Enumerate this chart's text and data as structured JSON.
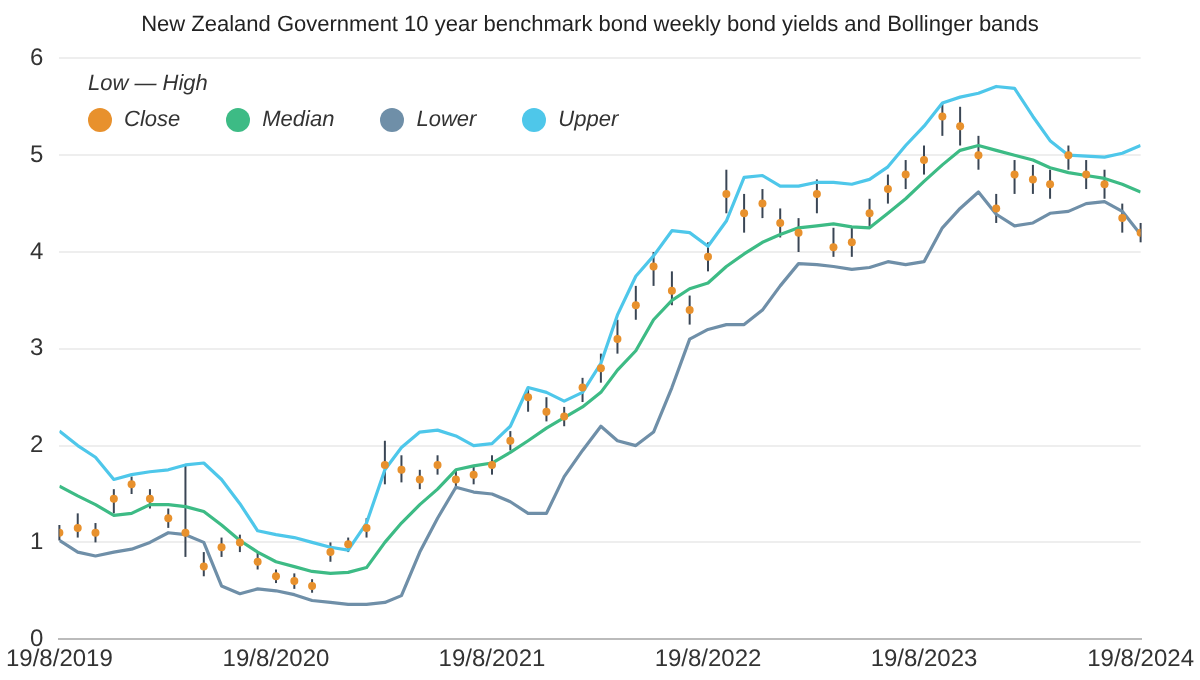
{
  "chart_data": {
    "type": "line",
    "title": "New Zealand Government 10 year benchmark bond weekly bond yields and Bollinger bands",
    "legend_title": "Low — High",
    "x": [
      "2019-08-19",
      "2019-09-19",
      "2019-10-19",
      "2019-11-19",
      "2019-12-19",
      "2020-01-19",
      "2020-02-19",
      "2020-03-19",
      "2020-04-19",
      "2020-05-19",
      "2020-06-19",
      "2020-07-19",
      "2020-08-19",
      "2020-09-19",
      "2020-10-19",
      "2020-11-19",
      "2020-12-19",
      "2021-01-19",
      "2021-02-19",
      "2021-03-19",
      "2021-04-19",
      "2021-05-19",
      "2021-06-19",
      "2021-07-19",
      "2021-08-19",
      "2021-09-19",
      "2021-10-19",
      "2021-11-19",
      "2021-12-19",
      "2022-01-19",
      "2022-02-19",
      "2022-03-19",
      "2022-04-19",
      "2022-05-19",
      "2022-06-19",
      "2022-07-19",
      "2022-08-19",
      "2022-09-19",
      "2022-10-19",
      "2022-11-19",
      "2022-12-19",
      "2023-01-19",
      "2023-02-19",
      "2023-03-19",
      "2023-04-19",
      "2023-05-19",
      "2023-06-19",
      "2023-07-19",
      "2023-08-19",
      "2023-09-19",
      "2023-10-19",
      "2023-11-19",
      "2023-12-19",
      "2024-01-19",
      "2024-02-19",
      "2024-03-19",
      "2024-04-19",
      "2024-05-19",
      "2024-06-19",
      "2024-07-19",
      "2024-08-19"
    ],
    "series": [
      {
        "name": "Close",
        "type": "scatter",
        "marker": "circle",
        "color": "#e8912d",
        "values": [
          1.1,
          1.15,
          1.1,
          1.45,
          1.6,
          1.45,
          1.25,
          1.1,
          0.75,
          0.95,
          1.0,
          0.8,
          0.65,
          0.6,
          0.55,
          0.9,
          0.98,
          1.15,
          1.8,
          1.75,
          1.65,
          1.8,
          1.65,
          1.7,
          1.8,
          2.05,
          2.5,
          2.35,
          2.3,
          2.6,
          2.8,
          3.1,
          3.45,
          3.85,
          3.6,
          3.4,
          3.95,
          4.6,
          4.4,
          4.5,
          4.3,
          4.2,
          4.6,
          4.05,
          4.1,
          4.4,
          4.65,
          4.8,
          4.95,
          5.4,
          5.3,
          5.0,
          4.45,
          4.8,
          4.75,
          4.7,
          5.0,
          4.8,
          4.7,
          4.35,
          4.2
        ],
        "errors": [
          [
            1.02,
            1.18
          ],
          [
            1.05,
            1.3
          ],
          [
            1.0,
            1.2
          ],
          [
            1.3,
            1.55
          ],
          [
            1.5,
            1.68
          ],
          [
            1.35,
            1.55
          ],
          [
            1.15,
            1.35
          ],
          [
            0.85,
            1.8
          ],
          [
            0.65,
            0.9
          ],
          [
            0.85,
            1.05
          ],
          [
            0.9,
            1.08
          ],
          [
            0.72,
            0.9
          ],
          [
            0.58,
            0.72
          ],
          [
            0.52,
            0.68
          ],
          [
            0.48,
            0.62
          ],
          [
            0.8,
            1.0
          ],
          [
            0.9,
            1.05
          ],
          [
            1.05,
            1.25
          ],
          [
            1.6,
            2.05
          ],
          [
            1.62,
            1.9
          ],
          [
            1.55,
            1.75
          ],
          [
            1.7,
            1.9
          ],
          [
            1.55,
            1.75
          ],
          [
            1.6,
            1.8
          ],
          [
            1.7,
            1.9
          ],
          [
            1.95,
            2.15
          ],
          [
            2.35,
            2.6
          ],
          [
            2.25,
            2.5
          ],
          [
            2.2,
            2.4
          ],
          [
            2.45,
            2.7
          ],
          [
            2.65,
            2.95
          ],
          [
            2.95,
            3.3
          ],
          [
            3.3,
            3.65
          ],
          [
            3.65,
            4.0
          ],
          [
            3.45,
            3.8
          ],
          [
            3.25,
            3.55
          ],
          [
            3.8,
            4.1
          ],
          [
            4.4,
            4.85
          ],
          [
            4.2,
            4.6
          ],
          [
            4.35,
            4.65
          ],
          [
            4.15,
            4.45
          ],
          [
            4.0,
            4.35
          ],
          [
            4.4,
            4.75
          ],
          [
            3.95,
            4.25
          ],
          [
            3.95,
            4.25
          ],
          [
            4.25,
            4.55
          ],
          [
            4.5,
            4.8
          ],
          [
            4.65,
            4.95
          ],
          [
            4.8,
            5.1
          ],
          [
            5.2,
            5.55
          ],
          [
            5.1,
            5.5
          ],
          [
            4.85,
            5.2
          ],
          [
            4.3,
            4.6
          ],
          [
            4.6,
            4.95
          ],
          [
            4.6,
            4.9
          ],
          [
            4.55,
            4.85
          ],
          [
            4.85,
            5.1
          ],
          [
            4.65,
            4.95
          ],
          [
            4.55,
            4.85
          ],
          [
            4.2,
            4.5
          ],
          [
            4.1,
            4.3
          ]
        ]
      },
      {
        "name": "Median",
        "type": "line",
        "color": "#3dbb85",
        "values": [
          1.58,
          1.48,
          1.39,
          1.28,
          1.3,
          1.39,
          1.39,
          1.37,
          1.32,
          1.18,
          1.02,
          0.9,
          0.8,
          0.75,
          0.7,
          0.68,
          0.69,
          0.74,
          1.0,
          1.2,
          1.39,
          1.55,
          1.75,
          1.79,
          1.82,
          1.93,
          2.05,
          2.18,
          2.29,
          2.4,
          2.55,
          2.78,
          2.98,
          3.3,
          3.5,
          3.62,
          3.68,
          3.85,
          3.98,
          4.1,
          4.18,
          4.25,
          4.27,
          4.29,
          4.26,
          4.25,
          4.4,
          4.55,
          4.73,
          4.9,
          5.05,
          5.1,
          5.05,
          5.0,
          4.95,
          4.87,
          4.82,
          4.79,
          4.76,
          4.7,
          4.62
        ]
      },
      {
        "name": "Lower",
        "type": "line",
        "color": "#6f8fa8",
        "values": [
          1.02,
          0.9,
          0.86,
          0.9,
          0.93,
          1.0,
          1.1,
          1.08,
          1.0,
          0.55,
          0.47,
          0.52,
          0.5,
          0.46,
          0.4,
          0.38,
          0.36,
          0.36,
          0.38,
          0.45,
          0.9,
          1.25,
          1.57,
          1.52,
          1.5,
          1.42,
          1.3,
          1.3,
          1.68,
          1.95,
          2.2,
          2.05,
          2.0,
          2.14,
          2.6,
          3.1,
          3.2,
          3.25,
          3.25,
          3.4,
          3.65,
          3.88,
          3.87,
          3.85,
          3.82,
          3.84,
          3.9,
          3.87,
          3.9,
          4.25,
          4.45,
          4.62,
          4.39,
          4.27,
          4.3,
          4.4,
          4.42,
          4.5,
          4.52,
          4.42,
          4.18
        ]
      },
      {
        "name": "Upper",
        "type": "line",
        "color": "#4ec7ea",
        "values": [
          2.15,
          2.0,
          1.88,
          1.65,
          1.7,
          1.73,
          1.75,
          1.8,
          1.82,
          1.65,
          1.4,
          1.12,
          1.08,
          1.05,
          1.0,
          0.95,
          0.92,
          1.2,
          1.75,
          1.98,
          2.14,
          2.16,
          2.1,
          2.0,
          2.02,
          2.2,
          2.6,
          2.55,
          2.46,
          2.55,
          2.85,
          3.35,
          3.75,
          3.96,
          4.22,
          4.2,
          4.06,
          4.32,
          4.77,
          4.79,
          4.68,
          4.68,
          4.72,
          4.72,
          4.7,
          4.75,
          4.88,
          5.1,
          5.3,
          5.54,
          5.6,
          5.64,
          5.71,
          5.69,
          5.4,
          5.15,
          5.0,
          4.99,
          4.98,
          5.02,
          5.1
        ]
      }
    ],
    "xlim": [
      "2019-08-19",
      "2024-08-19"
    ],
    "xticks": [
      {
        "value": "2019-08-19",
        "label": "19/8/2019"
      },
      {
        "value": "2020-08-19",
        "label": "19/8/2020"
      },
      {
        "value": "2021-08-19",
        "label": "19/8/2021"
      },
      {
        "value": "2022-08-19",
        "label": "19/8/2022"
      },
      {
        "value": "2023-08-19",
        "label": "19/8/2023"
      },
      {
        "value": "2024-08-19",
        "label": "19/8/2024"
      }
    ],
    "ylim": [
      0,
      6
    ],
    "yticks": [
      0,
      1,
      2,
      3,
      4,
      5,
      6
    ],
    "grid": "y",
    "legend": "top left",
    "line_style": "solid"
  }
}
